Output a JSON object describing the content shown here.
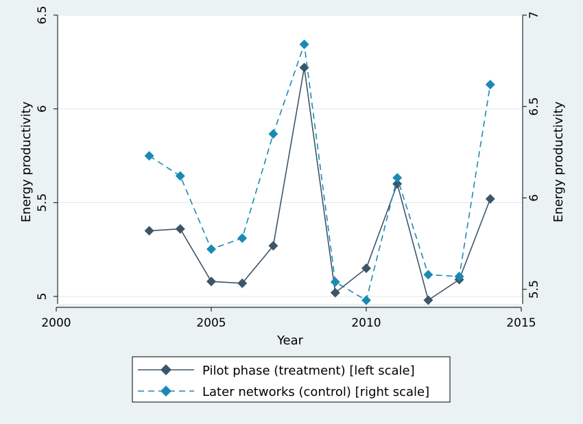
{
  "chart_data": {
    "type": "line",
    "title": "",
    "xlabel": "Year",
    "ylabel_left": "Energy productivity",
    "ylabel_right": "Energy productivity",
    "xlim": [
      2000,
      2015
    ],
    "ylim_left": [
      4.96,
      6.5
    ],
    "ylim_right": [
      5.42,
      7.0
    ],
    "x_ticks": [
      2000,
      2005,
      2010,
      2015
    ],
    "y_ticks_left": [
      5,
      5.5,
      6,
      6.5
    ],
    "y_ticks_right": [
      5.5,
      6,
      6.5,
      7
    ],
    "y_tick_labels_left": [
      "5",
      "5.5",
      "6",
      "6.5"
    ],
    "y_tick_labels_right": [
      "5.5",
      "6",
      "6.5",
      "7"
    ],
    "x_tick_labels": [
      "2000",
      "2005",
      "2010",
      "2015"
    ],
    "grid": "horizontal",
    "legend_placement": "bottom",
    "series": [
      {
        "name": "Pilot phase (treatment) [left scale]",
        "axis": "left",
        "style": "solid",
        "marker": "diamond",
        "color": "#3d5568",
        "x": [
          2003,
          2004,
          2005,
          2006,
          2007,
          2008,
          2009,
          2010,
          2011,
          2012,
          2013,
          2014
        ],
        "y": [
          5.35,
          5.36,
          5.08,
          5.07,
          5.27,
          6.22,
          5.02,
          5.15,
          5.6,
          4.98,
          5.09,
          5.52
        ]
      },
      {
        "name": "Later networks (control) [right scale]",
        "axis": "right",
        "style": "dashed",
        "marker": "diamond",
        "color": "#1a8ab5",
        "x": [
          2003,
          2004,
          2005,
          2006,
          2007,
          2008,
          2009,
          2010,
          2011,
          2012,
          2013,
          2014
        ],
        "y": [
          6.23,
          6.12,
          5.72,
          5.78,
          6.35,
          6.84,
          5.54,
          5.44,
          6.11,
          5.58,
          5.57,
          6.62
        ]
      }
    ]
  },
  "colors": {
    "background": "#eaf2f3",
    "plot_background": "#ffffff",
    "grid": "#e1ecee",
    "axis": "#000000"
  }
}
